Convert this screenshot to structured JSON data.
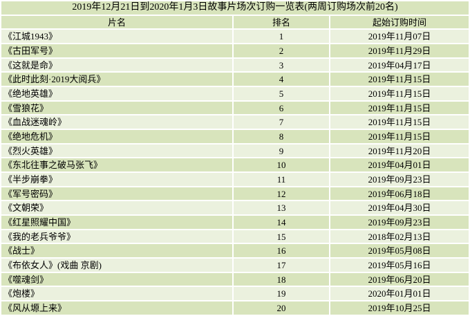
{
  "colors": {
    "row_dark": "#d8e4bc",
    "row_light": "#ebf1de",
    "grid": "#ffffff",
    "text": "#000000"
  },
  "chart_data": {
    "type": "table",
    "title": "2019年12月21日到2020年1月3日故事片场次订购一览表(两周订购场次前20名)",
    "columns": [
      "片名",
      "排名",
      "起始订购时间"
    ],
    "rows": [
      {
        "name": "《江城1943》",
        "rank": "1",
        "date": "2019年11月07日"
      },
      {
        "name": "《古田军号》",
        "rank": "2",
        "date": "2019年11月29日"
      },
      {
        "name": "《这就是命》",
        "rank": "3",
        "date": "2019年04月17日"
      },
      {
        "name": "《此时此刻·2019大阅兵》",
        "rank": "4",
        "date": "2019年11月15日"
      },
      {
        "name": "《绝地英雄》",
        "rank": "5",
        "date": "2019年11月15日"
      },
      {
        "name": "《雪狼花》",
        "rank": "6",
        "date": "2019年11月15日"
      },
      {
        "name": "《血战迷魂岭》",
        "rank": "7",
        "date": "2019年11月15日"
      },
      {
        "name": "《绝地危机》",
        "rank": "8",
        "date": "2019年11月15日"
      },
      {
        "name": "《烈火英雄》",
        "rank": "9",
        "date": "2019年11月20日"
      },
      {
        "name": "《东北往事之破马张飞》",
        "rank": "10",
        "date": "2019年04月01日"
      },
      {
        "name": "《半步崩拳》",
        "rank": "11",
        "date": "2019年09月23日"
      },
      {
        "name": "《军号密码》",
        "rank": "12",
        "date": "2019年06月18日"
      },
      {
        "name": "《文朝荣》",
        "rank": "13",
        "date": "2019年04月30日"
      },
      {
        "name": "《红星照耀中国》",
        "rank": "14",
        "date": "2019年09月23日"
      },
      {
        "name": "《我的老兵爷爷》",
        "rank": "15",
        "date": "2018年02月13日"
      },
      {
        "name": "《战士》",
        "rank": "16",
        "date": "2019年05月08日"
      },
      {
        "name": "《布依女人》(戏曲 京剧)",
        "rank": "17",
        "date": "2019年05月16日"
      },
      {
        "name": "《噬魂剑》",
        "rank": "18",
        "date": "2019年06月20日"
      },
      {
        "name": "《炮楼》",
        "rank": "19",
        "date": "2020年01月01日"
      },
      {
        "name": "《风从塬上来》",
        "rank": "20",
        "date": "2019年10月25日"
      }
    ]
  }
}
